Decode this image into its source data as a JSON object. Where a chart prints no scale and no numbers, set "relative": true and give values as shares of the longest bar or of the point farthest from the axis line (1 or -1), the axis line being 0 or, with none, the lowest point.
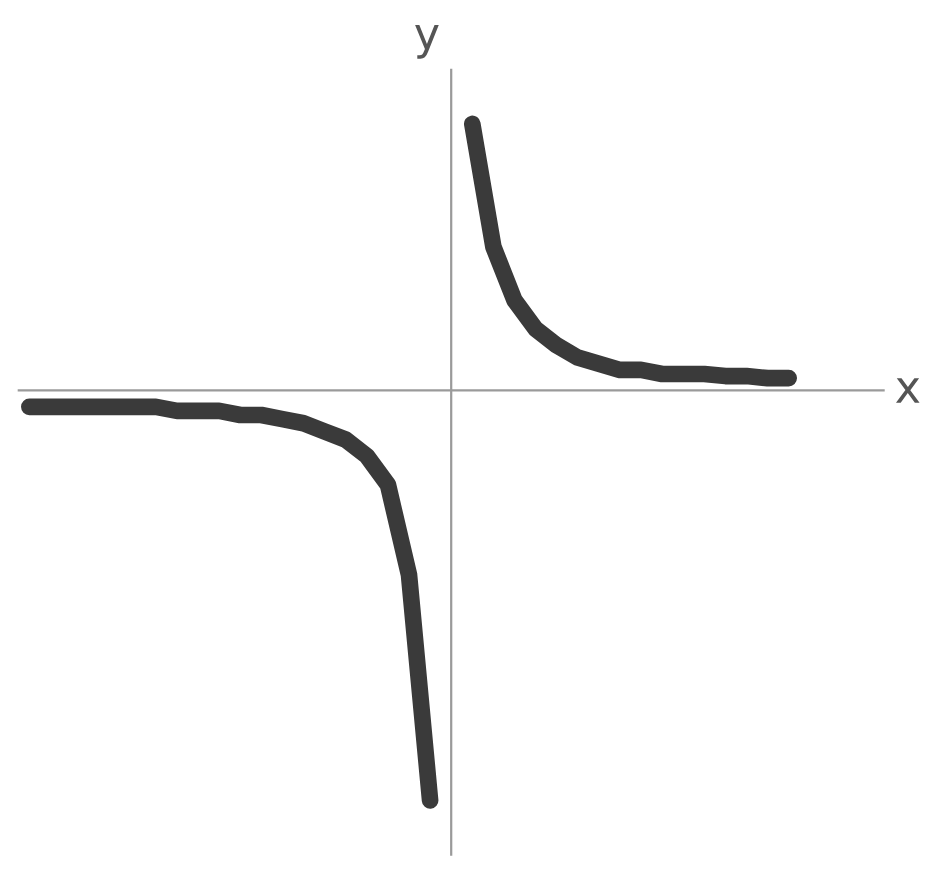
{
  "chart_data": {
    "type": "line",
    "relative": true,
    "xlabel": "x",
    "ylabel": "y",
    "legend": false,
    "marker": "none",
    "line_style": "solid",
    "categories": [
      null,
      null,
      null,
      null,
      null,
      null,
      null,
      null,
      null,
      null,
      null,
      null,
      null,
      null,
      null,
      null,
      null,
      null,
      null,
      null,
      null,
      null,
      null,
      null,
      null,
      null,
      null,
      null,
      null,
      null,
      null,
      null,
      null,
      null,
      null,
      null,
      null,
      null,
      null,
      null,
      null
    ],
    "series": [
      {
        "color": "#3a3a3a",
        "values": [
          -0.04,
          -0.04,
          -0.04,
          -0.04,
          -0.04,
          -0.04,
          -0.04,
          -0.05,
          -0.05,
          -0.05,
          -0.06,
          -0.06,
          -0.07,
          -0.08,
          -0.1,
          -0.12,
          -0.16,
          -0.23,
          -0.45,
          -1,
          null,
          null,
          null,
          null,
          null,
          null,
          null,
          null,
          null,
          null,
          null,
          null,
          null,
          null,
          null,
          null,
          null,
          null,
          null,
          null,
          null
        ]
      },
      {
        "color": "#3a3a3a",
        "values": [
          null,
          null,
          null,
          null,
          null,
          null,
          null,
          null,
          null,
          null,
          null,
          null,
          null,
          null,
          null,
          null,
          null,
          null,
          null,
          null,
          null,
          0.65,
          0.35,
          0.22,
          0.15,
          0.11,
          0.08,
          0.065,
          0.05,
          0.05,
          0.04,
          0.04,
          0.04,
          0.035,
          0.035,
          0.03,
          0.03,
          null,
          null,
          null,
          null
        ]
      }
    ]
  }
}
